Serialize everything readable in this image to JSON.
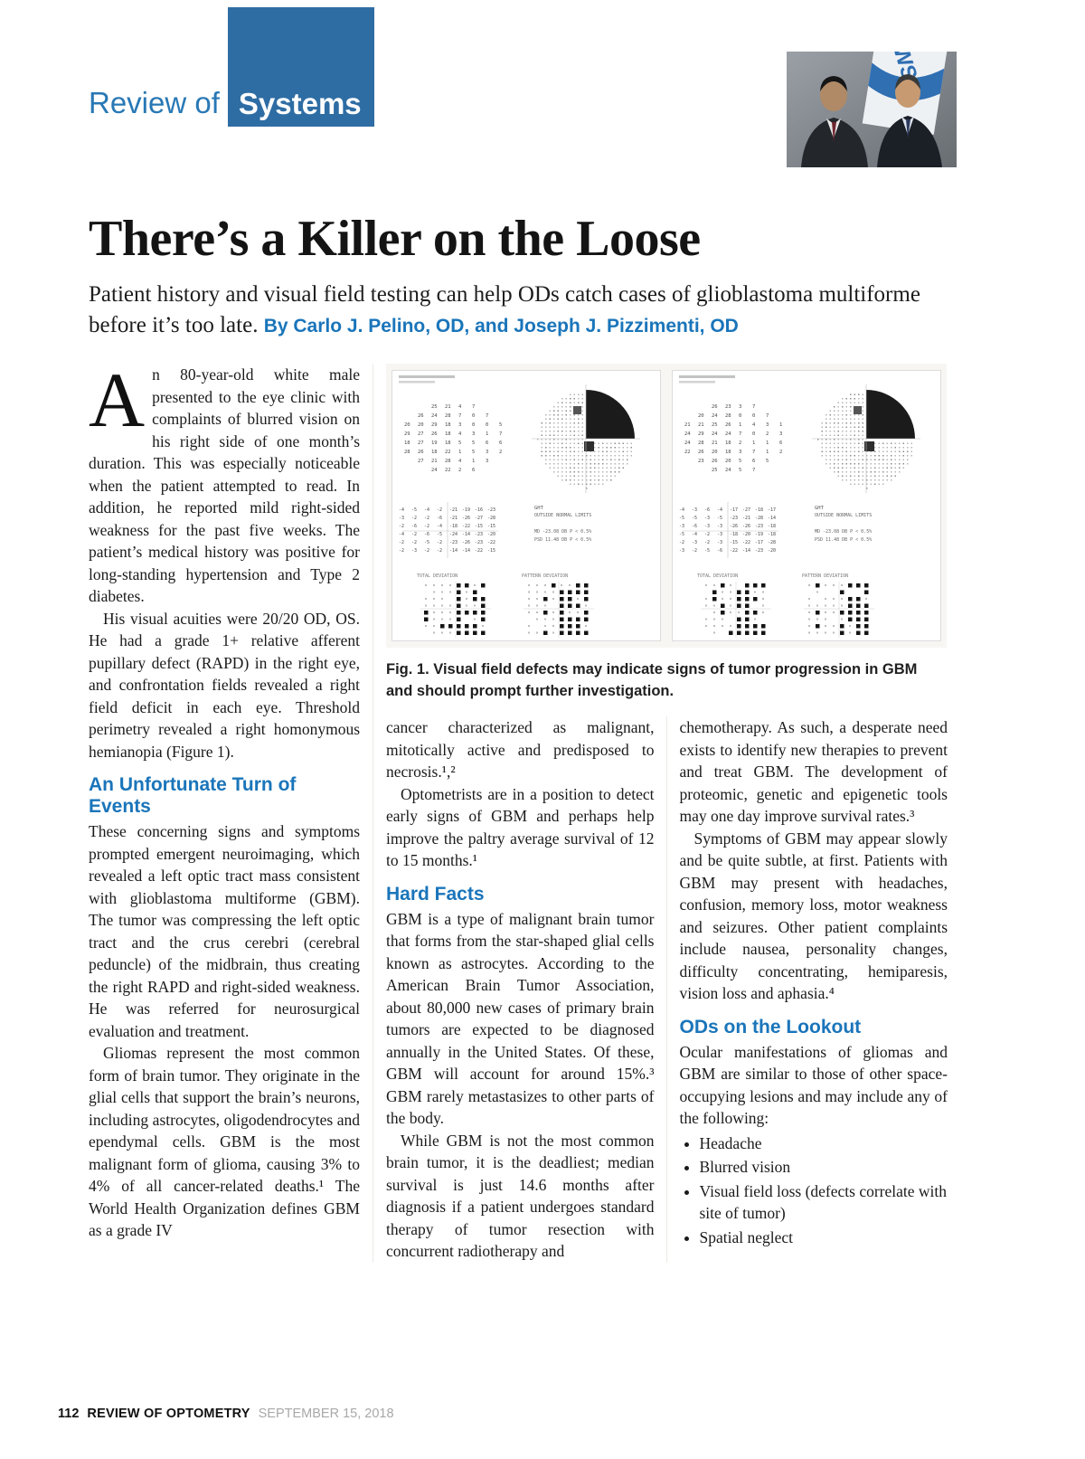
{
  "page": {
    "logo_prefix": "Review of",
    "logo_box": "Systems",
    "title": "There’s a Killer on the Loose",
    "deck": "Patient history and visual field testing can help ODs catch cases of glioblastoma multiforme before it’s too late.",
    "byline": "By Carlo J. Pelino, OD, and Joseph J. Pizzimenti, OD",
    "footer": {
      "page_number": "112",
      "magazine": "REVIEW OF OPTOMETRY",
      "date": "SEPTEMBER 15, 2018"
    }
  },
  "figure": {
    "caption_label": "Fig. 1.",
    "caption_text": "Visual field defects may indicate signs of tumor progression in GBM and should prompt further investigation.",
    "panel_count": 2,
    "annotations": {
      "ght_label": "GHT",
      "ght_result": "OUTSIDE NORMAL LIMITS",
      "md_line": "MD  -23.08 DB  P < 0.5%",
      "psd_line": "PSD  11.48 DB  P < 0.5%",
      "total_dev": "TOTAL DEVIATION",
      "pattern_dev": "PATTERN DEVIATION"
    }
  },
  "columns": {
    "col1": {
      "dropcap": "A",
      "p1": "n 80-year-old white male presented to the eye clinic with complaints of blurred vision on his right side of one month’s duration. This was especially noticeable when the patient attempted to read. In addition, he reported mild right-sided weakness for the past five weeks. The patient’s medical history was positive for long-standing hypertension and Type 2 diabetes.",
      "p2": "His visual acuities were 20/20 OD, OS. He had a grade 1+ relative afferent pupillary defect (RAPD) in the right eye, and confrontation fields revealed a right field deficit in each eye. Threshold perimetry revealed a right homonymous hemianopia (Figure 1).",
      "heading": "An Unfortunate Turn of Events",
      "p3": "These concerning signs and symptoms prompted emergent neuroimaging, which revealed a left optic tract mass consistent with glioblastoma multiforme (GBM). The tumor was compressing the left optic tract and the crus cerebri (cerebral peduncle) of the midbrain, thus creating the right RAPD and right-sided weakness. He was referred for neurosurgical evaluation and treatment.",
      "p4": "Gliomas represent the most common form of brain tumor. They originate in the glial cells that support the brain’s neurons, including astrocytes, oligodendrocytes and ependymal cells. GBM is the most malignant form of glioma, causing 3% to 4% of all cancer-related deaths.¹ The World Health Organization defines GBM as a grade IV"
    },
    "col2": {
      "p1": "cancer characterized as malignant, mitotically active and predisposed to necrosis.¹,²",
      "p2": "Optometrists are in a position to detect early signs of GBM and perhaps help improve the paltry average survival of 12 to 15 months.¹",
      "heading": "Hard Facts",
      "p3": "GBM is a type of malignant brain tumor that forms from the star-shaped glial cells known as astrocytes. According to the American Brain Tumor Association, about 80,000 new cases of primary brain tumors are expected to be diagnosed annually in the United States. Of these, GBM will account for around 15%.³ GBM rarely metastasizes to other parts of the body.",
      "p4": "While GBM is not the most common brain tumor, it is the deadliest; median survival is just 14.6 months after diagnosis if a patient undergoes standard therapy of tumor resection with concurrent radiotherapy and"
    },
    "col3": {
      "p1": "chemotherapy. As such, a desperate need exists to identify new therapies to prevent and treat GBM. The development of proteomic, genetic and epigenetic tools may one day improve survival rates.³",
      "p2": "Symptoms of GBM may appear slowly and be quite subtle, at first. Patients with GBM may present with headaches, confusion, memory loss, motor weakness and seizures. Other patient complaints include nausea, personality changes, difficulty concentrating, hemiparesis, vision loss and aphasia.⁴",
      "heading": "ODs on the Lookout",
      "p3": "Ocular manifestations of gliomas and GBM are similar to those of other space-occupying lesions and may include any of the following:",
      "bullets": [
        "Headache",
        "Blurred vision",
        "Visual field loss (defects correlate with site of tumor)",
        "Spatial neglect"
      ]
    }
  }
}
